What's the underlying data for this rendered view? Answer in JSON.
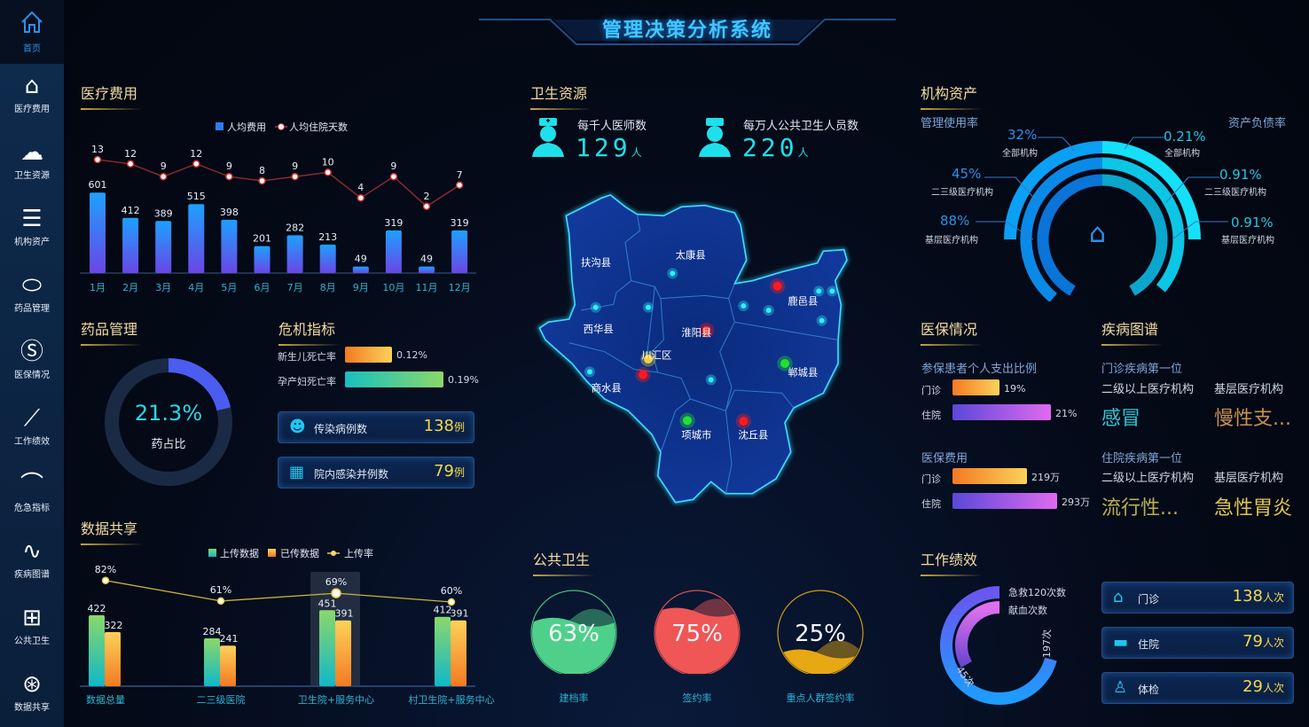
{
  "header": {
    "title": "管理决策分析系统"
  },
  "sidebar": {
    "items": [
      {
        "label": "首页",
        "icon": "home-icon"
      },
      {
        "label": "医疗费用",
        "icon": "yuan-house-icon"
      },
      {
        "label": "卫生资源",
        "icon": "cloud-icon"
      },
      {
        "label": "机构资产",
        "icon": "coin-stack-icon"
      },
      {
        "label": "药品管理",
        "icon": "pill-icon"
      },
      {
        "label": "医保情况",
        "icon": "si-icon"
      },
      {
        "label": "工作绩效",
        "icon": "line-chart-icon"
      },
      {
        "label": "危急指标",
        "icon": "alarm-icon"
      },
      {
        "label": "疾病图谱",
        "icon": "trend-icon"
      },
      {
        "label": "公共卫生",
        "icon": "plus-box-icon"
      },
      {
        "label": "数据共享",
        "icon": "share-icon"
      }
    ]
  },
  "medical_cost": {
    "title": "医疗费用",
    "legend": [
      "人均费用",
      "人均住院天数"
    ]
  },
  "drug": {
    "title": "药品管理",
    "percent": "21.3%",
    "label": "药占比",
    "fraction": 0.213
  },
  "crisis": {
    "title": "危机指标",
    "rates": [
      {
        "label": "新生儿死亡率",
        "value": "0.12%"
      },
      {
        "label": "孕产妇死亡率",
        "value": "0.19%"
      }
    ],
    "cards": [
      {
        "label": "传染病例数",
        "value": "138",
        "unit": "例"
      },
      {
        "label": "院内感染并例数",
        "value": "79",
        "unit": "例"
      }
    ]
  },
  "data_share": {
    "title": "数据共享",
    "legend": [
      "上传数据",
      "已传数据",
      "上传率"
    ]
  },
  "health": {
    "title": "卫生资源",
    "stats": [
      {
        "label": "每千人医师数",
        "value": "129",
        "unit": "人"
      },
      {
        "label": "每万人公共卫生人员数",
        "value": "220",
        "unit": "人"
      }
    ],
    "map": {
      "regions": [
        "扶沟县",
        "太康县",
        "西华县",
        "淮阳县",
        "鹿邑县",
        "川汇区",
        "商水县",
        "郸城县",
        "项城市",
        "沈丘县"
      ]
    }
  },
  "public_health": {
    "title": "公共卫生",
    "gauges": [
      {
        "value": "63%",
        "label": "建档率",
        "fraction": 0.63,
        "color": "#4fd08a"
      },
      {
        "value": "75%",
        "label": "签约率",
        "fraction": 0.75,
        "color": "#f05656"
      },
      {
        "value": "25%",
        "label": "重点人群签约率",
        "fraction": 0.25,
        "color": "#e6a914"
      }
    ]
  },
  "assets": {
    "title": "机构资产",
    "left_title": "管理使用率",
    "right_title": "资产负债率",
    "left": [
      {
        "value": "32%",
        "label": "全部机构"
      },
      {
        "value": "45%",
        "label": "二三级医疗机构"
      },
      {
        "value": "88%",
        "label": "基层医疗机构"
      }
    ],
    "right": [
      {
        "value": "0.21%",
        "label": "全部机构"
      },
      {
        "value": "0.91%",
        "label": "二三级医疗机构"
      },
      {
        "value": "0.91%",
        "label": "基层医疗机构"
      }
    ]
  },
  "insurance": {
    "title": "医保情况",
    "ratio": {
      "title": "参保患者个人支出比例",
      "rows": [
        {
          "label": "门诊",
          "value": "19%"
        },
        {
          "label": "住院",
          "value": "21%"
        }
      ]
    },
    "cost": {
      "title": "医保费用",
      "rows": [
        {
          "label": "门诊",
          "value": "219万"
        },
        {
          "label": "住院",
          "value": "293万"
        }
      ]
    }
  },
  "disease": {
    "title": "疾病图谱",
    "outpatient": {
      "title": "门诊疾病第一位",
      "col1": "二级以上医疗机构",
      "col2": "基层医疗机构",
      "v1": "感冒",
      "v2": "慢性支..."
    },
    "inpatient": {
      "title": "住院疾病第一位",
      "col1": "二级以上医疗机构",
      "col2": "基层医疗机构",
      "v1": "流行性...",
      "v2": "急性胃炎"
    }
  },
  "performance": {
    "title": "工作绩效",
    "donut": [
      {
        "label": "急救120次数",
        "value": "197次"
      },
      {
        "label": "献血次数",
        "value": "45次"
      }
    ],
    "cards": [
      {
        "label": "门诊",
        "value": "138",
        "unit": "人次"
      },
      {
        "label": "住院",
        "value": "79",
        "unit": "人次"
      },
      {
        "label": "体检",
        "value": "29",
        "unit": "人次"
      }
    ]
  },
  "chart_data": [
    {
      "type": "bar",
      "title": "医疗费用",
      "categories": [
        "1月",
        "2月",
        "3月",
        "4月",
        "5月",
        "6月",
        "7月",
        "8月",
        "9月",
        "10月",
        "11月",
        "12月"
      ],
      "series": [
        {
          "name": "人均费用",
          "type": "bar",
          "values": [
            601,
            412,
            389,
            515,
            398,
            201,
            282,
            213,
            49,
            319,
            49,
            319
          ]
        },
        {
          "name": "人均住院天数",
          "type": "line",
          "values": [
            13,
            12,
            9,
            12,
            9,
            8,
            9,
            10,
            4,
            9,
            2,
            7
          ]
        }
      ]
    },
    {
      "type": "bar",
      "title": "数据共享",
      "categories": [
        "数据总量",
        "二三级医院",
        "卫生院+服务中心",
        "村卫生院+服务中心"
      ],
      "series": [
        {
          "name": "上传数据",
          "type": "bar",
          "values": [
            422,
            284,
            451,
            412
          ]
        },
        {
          "name": "已传数据",
          "type": "bar",
          "values": [
            322,
            241,
            391,
            391
          ]
        },
        {
          "name": "上传率",
          "type": "line",
          "values": [
            "82%",
            "61%",
            "69%",
            "60%"
          ]
        }
      ]
    }
  ]
}
